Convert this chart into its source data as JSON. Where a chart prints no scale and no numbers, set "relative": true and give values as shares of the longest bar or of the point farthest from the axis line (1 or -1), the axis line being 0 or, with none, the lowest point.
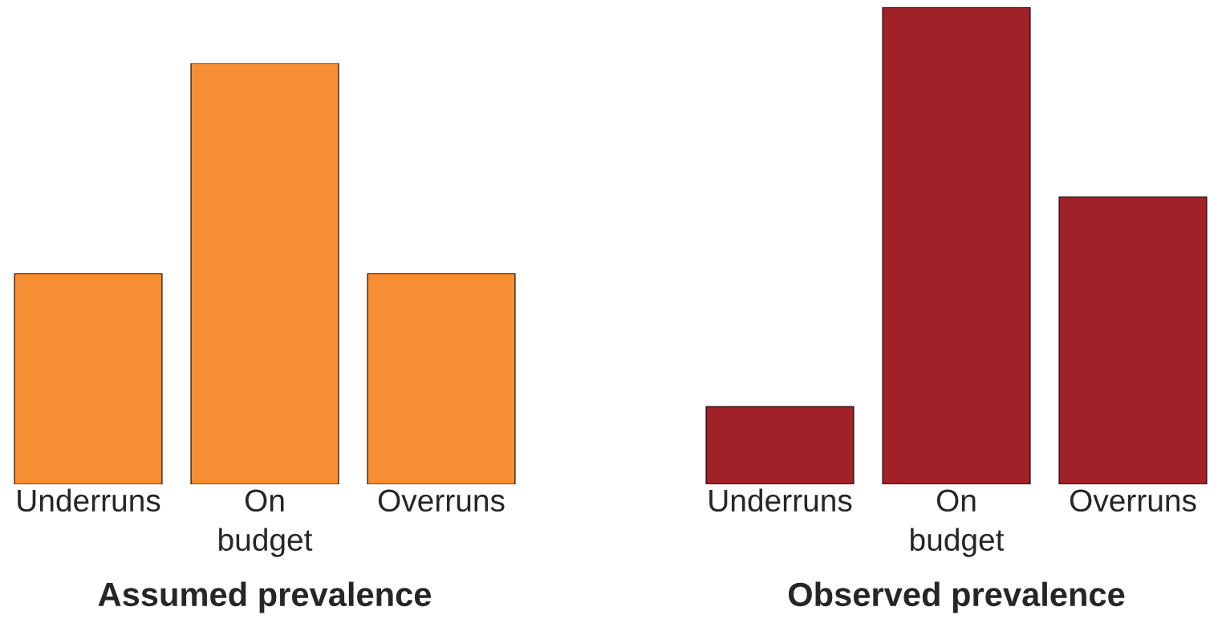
{
  "chart_data": [
    {
      "type": "bar",
      "title": "Assumed prevalence",
      "relative": true,
      "categories": [
        "Underruns",
        "On\nbudget",
        "Overruns"
      ],
      "values": [
        0.5,
        1,
        0.5
      ],
      "color": "#f68e33"
    },
    {
      "type": "bar",
      "title": "Observed prevalence",
      "relative": true,
      "categories": [
        "Underruns",
        "On\nbudget",
        "Overruns"
      ],
      "values": [
        0.163,
        1,
        0.602
      ],
      "color": "#a02128"
    }
  ]
}
